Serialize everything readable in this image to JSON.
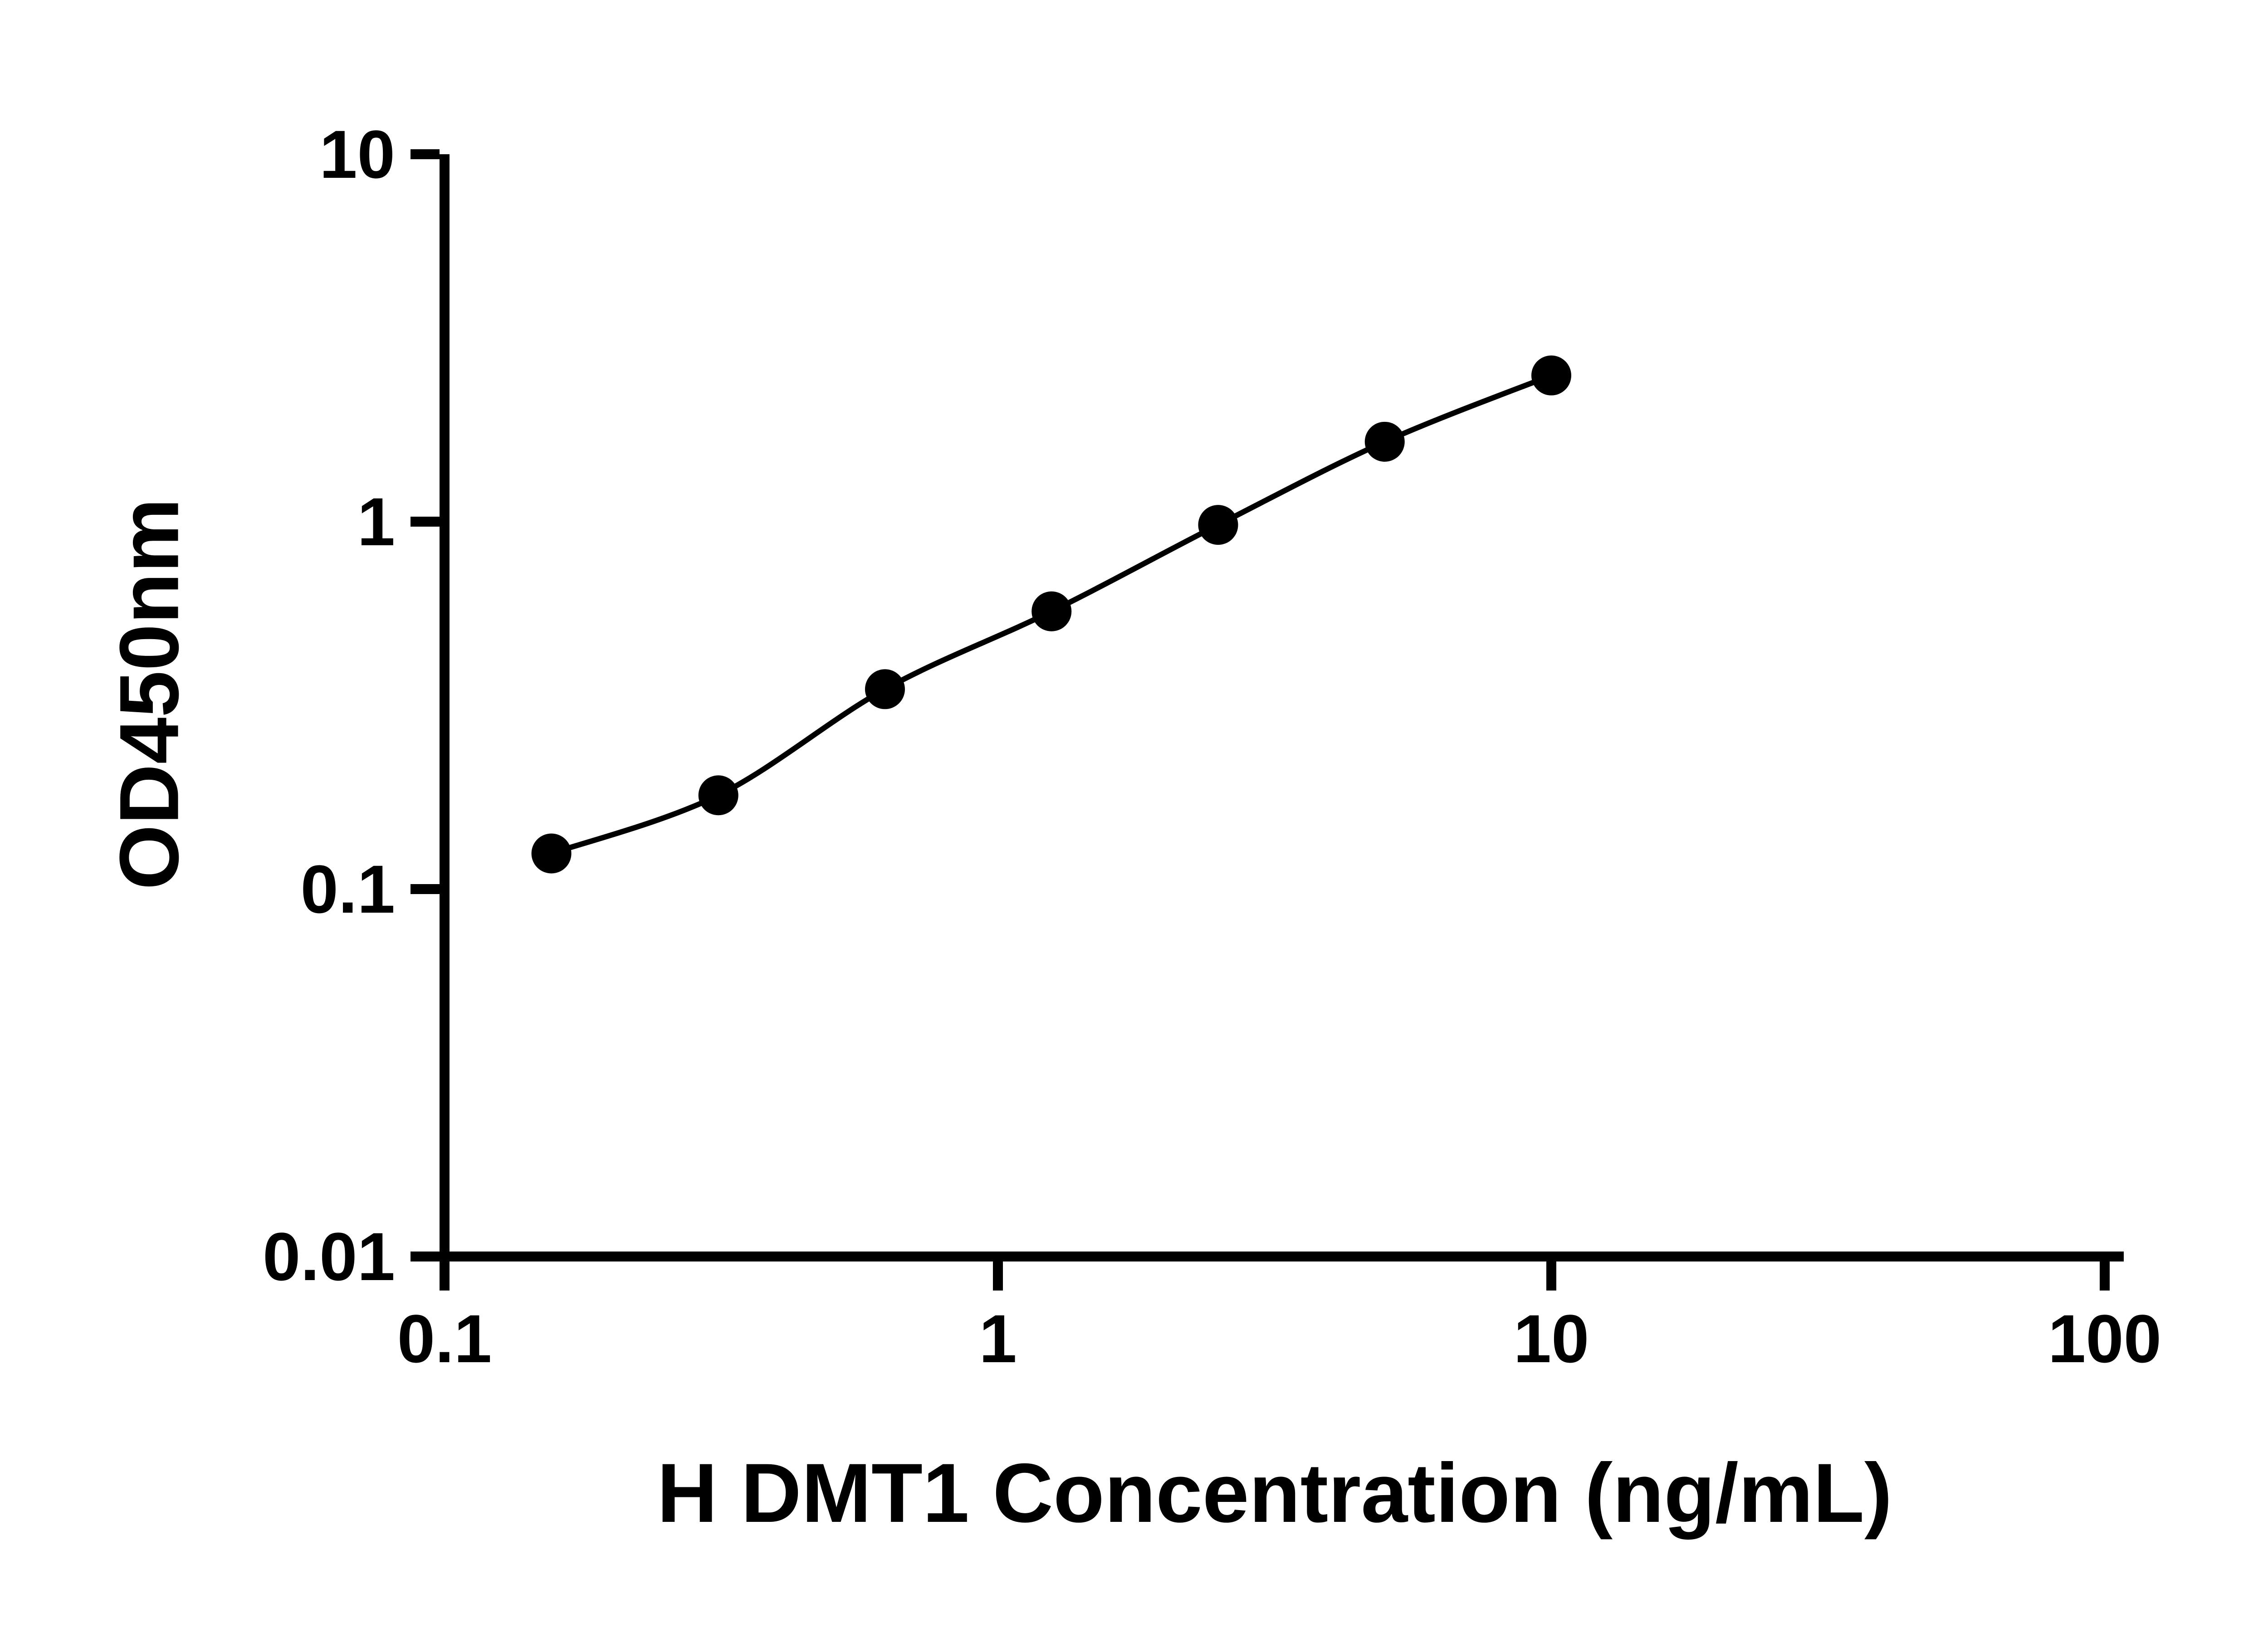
{
  "chart_data": {
    "type": "scatter",
    "title": "",
    "xlabel": "H DMT1 Concentration (ng/mL)",
    "ylabel": "OD450nm",
    "xscale": "log",
    "yscale": "log",
    "xlim": [
      0.1,
      100
    ],
    "ylim": [
      0.01,
      10
    ],
    "grid": false,
    "legend": false,
    "x": [
      0.156,
      0.3125,
      0.625,
      1.25,
      2.5,
      5,
      10
    ],
    "y": [
      0.125,
      0.18,
      0.35,
      0.57,
      0.98,
      1.65,
      2.5
    ],
    "x_tick_values": [
      0.1,
      1,
      10,
      100
    ],
    "x_tick_labels": [
      "0.1",
      "1",
      "10",
      "100"
    ],
    "y_tick_values": [
      0.01,
      0.1,
      1,
      10
    ],
    "y_tick_labels": [
      "0.01",
      "0.1",
      "1",
      "10"
    ],
    "marker": "filled-circle",
    "line": "smooth-fit-curve",
    "colors": {
      "axis": "#000000",
      "marker": "#000000",
      "line": "#000000",
      "text": "#000000",
      "background": "#ffffff"
    }
  }
}
